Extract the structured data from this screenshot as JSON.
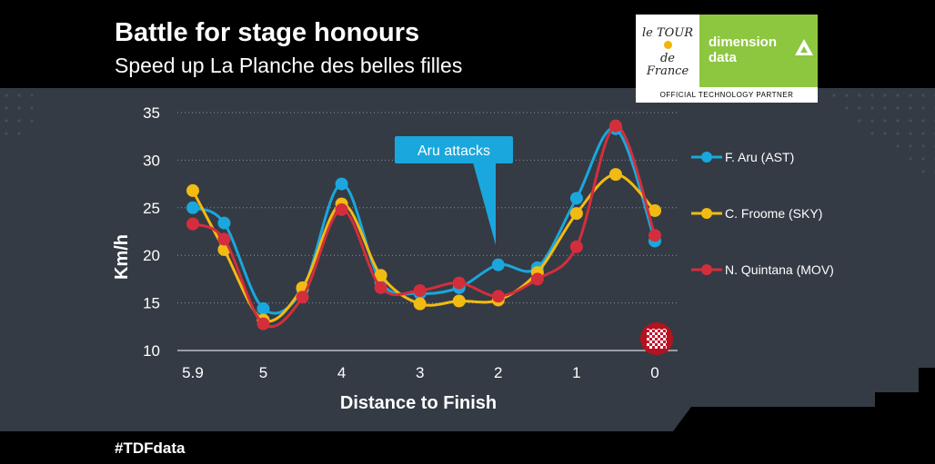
{
  "header": {
    "title": "Battle for stage honours",
    "subtitle": "Speed up La Planche des belles filles"
  },
  "logo": {
    "brand_left": "le TOUR de France",
    "brand_right_line1": "dimension",
    "brand_right_line2": "data",
    "partner_text": "OFFICIAL TECHNOLOGY PARTNER"
  },
  "footer": {
    "hashtag": "#TDFdata"
  },
  "annotation": {
    "text": "Aru attacks",
    "color": "#1aa7dd"
  },
  "finish_icon": "checkered-flag-icon",
  "colors": {
    "background": "#000000",
    "panel": "#343b44",
    "aru": "#1aa7dd",
    "froome": "#f2bb13",
    "quintana": "#d42e3c",
    "logo_green": "#8dc63f"
  },
  "chart_data": {
    "type": "line",
    "title": "",
    "xlabel": "Distance to Finish",
    "ylabel": "Km/h",
    "x_tick_labels": [
      "5.9",
      "5",
      "4",
      "3",
      "2",
      "1",
      "0"
    ],
    "x_reversed": true,
    "xlim": [
      5.9,
      0
    ],
    "ylim": [
      10,
      35
    ],
    "y_ticks": [
      10,
      15,
      20,
      25,
      30,
      35
    ],
    "grid": "horizontal dotted",
    "legend_position": "right",
    "x": [
      5.9,
      5.5,
      5.0,
      4.5,
      4.0,
      3.5,
      3.0,
      2.5,
      2.0,
      1.5,
      1.0,
      0.5,
      0.0
    ],
    "series": [
      {
        "name": "F. Aru (AST)",
        "color": "#1aa7dd",
        "values": [
          25.0,
          23.4,
          14.4,
          16.4,
          27.5,
          17.2,
          16.0,
          16.6,
          19.0,
          18.7,
          26.0,
          33.3,
          21.5
        ]
      },
      {
        "name": "C. Froome (SKY)",
        "color": "#f2bb13",
        "values": [
          26.8,
          20.6,
          13.2,
          16.6,
          25.4,
          17.9,
          14.9,
          15.2,
          15.3,
          18.2,
          24.4,
          28.5,
          24.7
        ]
      },
      {
        "name": "N. Quintana (MOV)",
        "color": "#d42e3c",
        "values": [
          23.3,
          21.7,
          12.8,
          15.6,
          24.8,
          16.6,
          16.3,
          17.1,
          15.7,
          17.5,
          20.9,
          33.6,
          22.1
        ]
      }
    ]
  }
}
